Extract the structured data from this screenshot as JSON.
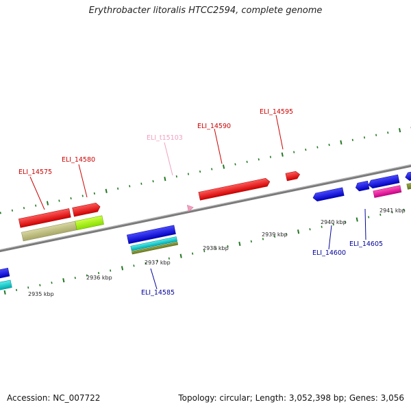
{
  "header": {
    "title": "Erythrobacter litoralis HTCC2594, complete genome"
  },
  "footer": {
    "accession": "Accession: NC_007722",
    "summary": "Topology: circular; Length: 3,052,398 bp; Genes: 3,056"
  },
  "axis_labels": [
    "2935 kbp",
    "2936 kbp",
    "2937 kbp",
    "2938 kbp",
    "2939 kbp",
    "2940 kbp",
    "2941 kbp"
  ],
  "genes": [
    {
      "id": "ELI_14575",
      "color": "#cc0000",
      "strand": "plus"
    },
    {
      "id": "ELI_14580",
      "color": "#cc0000",
      "strand": "plus"
    },
    {
      "id": "ELI_t15103",
      "color": "#f0a0c0",
      "strand": "plus"
    },
    {
      "id": "ELI_14590",
      "color": "#cc0000",
      "strand": "plus"
    },
    {
      "id": "ELI_14595",
      "color": "#cc0000",
      "strand": "plus"
    },
    {
      "id": "ELI_14585",
      "color": "#000099",
      "strand": "minus"
    },
    {
      "id": "ELI_14600",
      "color": "#000099",
      "strand": "minus"
    },
    {
      "id": "ELI_14605",
      "color": "#000099",
      "strand": "minus"
    }
  ],
  "colors": {
    "backbone": "#777777",
    "ticks": "#227722",
    "plus_label": "#cc0000",
    "minus_label": "#000099",
    "trna": "#f0a0c0"
  }
}
